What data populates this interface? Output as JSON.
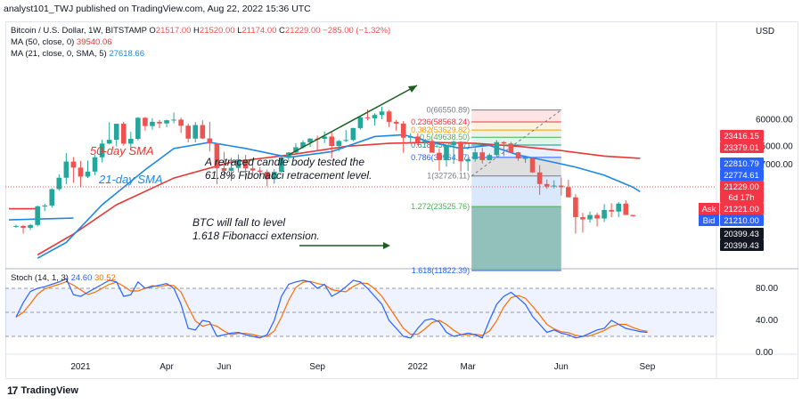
{
  "publisher": "analyst101_TWJ published on TradingView.com, Aug 22, 2022 15:36 UTC",
  "footer": {
    "brand": "TradingView",
    "logo": "17"
  },
  "chart_data": {
    "type": "candlestick",
    "legend": {
      "symbol": "Bitcoin / U.S. Dollar, 1W, BITSTAMP",
      "ohlc": {
        "open_label": "O",
        "open": "21517.00",
        "high_label": "H",
        "high": "21520.00",
        "low_label": "L",
        "low": "21174.00",
        "close_label": "C",
        "close": "21229.00",
        "change": "−285.00 (−1.32%)"
      },
      "ma50": {
        "label": "MA (50, close, 0)",
        "value": "39540.06",
        "color": "#e53935"
      },
      "ma21": {
        "label": "MA (21, close, 0, SMA, 5)",
        "value": "27618.66",
        "color": "#1e88e5"
      }
    },
    "currency": "USD",
    "y_ticks": [
      "60000.00",
      "45000.00",
      "37000.00"
    ],
    "y_tick_values": [
      60000,
      45000,
      37000
    ],
    "x_ticks": [
      "2021",
      "Apr",
      "Jun",
      "Sep",
      "2022",
      "Mar",
      "Jun",
      "Sep"
    ],
    "x_tick_weeks": [
      9,
      21,
      29,
      42,
      56,
      63,
      76,
      88
    ],
    "price_labels": [
      {
        "text": "23416.15",
        "bg": "#f23645",
        "fg": "#ffffff"
      },
      {
        "text": "23379.01",
        "bg": "#f23645",
        "fg": "#ffffff"
      },
      {
        "text": "22810.79",
        "bg": "#2962ff",
        "fg": "#ffffff"
      },
      {
        "text": "22774.61",
        "bg": "#2962ff",
        "fg": "#ffffff"
      },
      {
        "text": "21229.00",
        "bg": "#f23645",
        "fg": "#ffffff"
      },
      {
        "text": "6d 17h",
        "bg": "#f23645",
        "fg": "#ffffff"
      },
      {
        "text": "21221.00",
        "bg": "#f23645",
        "fg": "#ffffff",
        "tag": "Ask"
      },
      {
        "text": "21210.00",
        "bg": "#2962ff",
        "fg": "#ffffff",
        "tag": "Bid"
      },
      {
        "text": "20399.43",
        "bg": "#131722",
        "fg": "#ffffff"
      },
      {
        "text": "20399.43",
        "bg": "#131722",
        "fg": "#ffffff"
      }
    ],
    "fibonacci": [
      {
        "label": "0(66550.89)",
        "color": "#787b86"
      },
      {
        "label": "0.236(58568.24)",
        "color": "#f23645"
      },
      {
        "label": "0.382(53629.82)",
        "color": "#ff9800"
      },
      {
        "label": "0.5(49638.50)",
        "color": "#4caf50"
      },
      {
        "label": "0.618(45647.17)",
        "color": "#089981"
      },
      {
        "label": "0.786(39964.87)",
        "color": "#2962ff"
      },
      {
        "label": "1(32726.11)",
        "color": "#787b86"
      },
      {
        "label": "1.272(23525.76)",
        "color": "#4caf50"
      },
      {
        "label": "1.618(11822.39)",
        "color": "#2962ff"
      }
    ],
    "annotations": {
      "ma50_label": "50-day SMA",
      "ma21_label": "21-day SMA",
      "retrace_line1": "A retraced candle body tested the",
      "retrace_line2": "61.8% Fibonacci retracement level.",
      "fall_line1": "BTC will fall to level",
      "fall_line2": "1.618 Fibonacci extension."
    },
    "candles": [
      [
        19000,
        19400,
        18700,
        19100
      ],
      [
        19100,
        19300,
        17600,
        18700
      ],
      [
        18700,
        19500,
        18300,
        19300
      ],
      [
        19300,
        23800,
        19000,
        23600
      ],
      [
        23600,
        24300,
        22400,
        23800
      ],
      [
        23800,
        28700,
        23300,
        28400
      ],
      [
        28400,
        33300,
        27900,
        32100
      ],
      [
        32100,
        41900,
        30000,
        38200
      ],
      [
        38200,
        40100,
        30400,
        35800
      ],
      [
        35800,
        38500,
        29000,
        32500
      ],
      [
        32500,
        38600,
        32000,
        34300
      ],
      [
        34300,
        41000,
        33000,
        40000
      ],
      [
        40000,
        48300,
        37900,
        46400
      ],
      [
        46400,
        58300,
        46000,
        48300
      ],
      [
        48300,
        57400,
        45000,
        57400
      ],
      [
        57400,
        58500,
        45400,
        46300
      ],
      [
        46300,
        52600,
        43000,
        48800
      ],
      [
        48800,
        61700,
        48000,
        61200
      ],
      [
        61200,
        61700,
        53300,
        56000
      ],
      [
        56000,
        61000,
        53900,
        58600
      ],
      [
        58600,
        59800,
        54700,
        57600
      ],
      [
        57600,
        60000,
        55300,
        59600
      ],
      [
        59600,
        64800,
        57600,
        60000
      ],
      [
        60000,
        61300,
        52000,
        56200
      ],
      [
        56200,
        57500,
        47000,
        48900
      ],
      [
        48900,
        58500,
        47000,
        56600
      ],
      [
        56600,
        59600,
        48600,
        49000
      ],
      [
        49000,
        58600,
        42600,
        46400
      ],
      [
        46400,
        46600,
        30000,
        35600
      ],
      [
        35600,
        42400,
        33000,
        34600
      ],
      [
        34600,
        39800,
        31000,
        35700
      ],
      [
        35700,
        41200,
        34000,
        39100
      ],
      [
        39100,
        41000,
        31300,
        35500
      ],
      [
        35500,
        36700,
        33400,
        34700
      ],
      [
        34700,
        35900,
        32700,
        34200
      ],
      [
        34200,
        35100,
        29300,
        31600
      ],
      [
        31600,
        35200,
        30100,
        34200
      ],
      [
        34200,
        40600,
        33800,
        39800
      ],
      [
        39800,
        42300,
        38000,
        42100
      ],
      [
        42100,
        46600,
        41700,
        44600
      ],
      [
        44600,
        48000,
        43900,
        47000
      ],
      [
        47000,
        49200,
        44700,
        48900
      ],
      [
        48900,
        50500,
        42900,
        48800
      ],
      [
        48800,
        52900,
        46600,
        50000
      ],
      [
        50000,
        52800,
        39600,
        45200
      ],
      [
        45200,
        48200,
        42800,
        47700
      ],
      [
        47700,
        53600,
        47200,
        48200
      ],
      [
        48200,
        55000,
        47600,
        54800
      ],
      [
        54800,
        62500,
        53900,
        61500
      ],
      [
        61500,
        66900,
        59600,
        60900
      ],
      [
        60900,
        64200,
        56300,
        63100
      ],
      [
        63100,
        69000,
        60300,
        65500
      ],
      [
        65500,
        66600,
        55500,
        58600
      ],
      [
        58600,
        59800,
        53300,
        57500
      ],
      [
        57500,
        59000,
        42000,
        49400
      ],
      [
        49400,
        51900,
        47000,
        50000
      ],
      [
        50000,
        51800,
        45500,
        46800
      ],
      [
        46800,
        48000,
        45900,
        47700
      ],
      [
        47700,
        48500,
        42400,
        42000
      ]
    ],
    "stoch": {
      "label": "Stoch (14, 1, 3)",
      "k_value": "24.60",
      "d_value": "30.52",
      "k_color": "#2962ff",
      "d_color": "#ff6d00",
      "levels": [
        "80.00",
        "40.00",
        "0.00"
      ],
      "upper": 80,
      "lower": 20,
      "middle": 50
    }
  }
}
